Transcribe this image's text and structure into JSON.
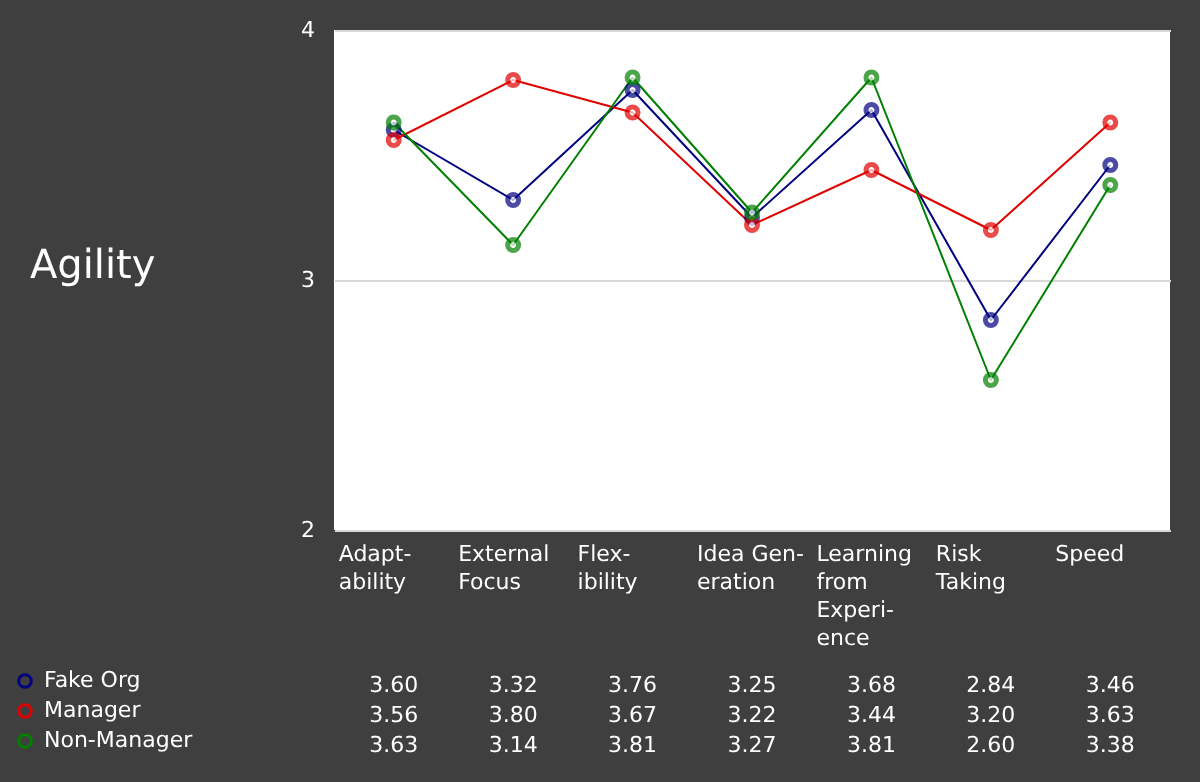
{
  "chart_data": {
    "type": "line",
    "title": "Agility",
    "categories": [
      "Adapt-\nability",
      "External\nFocus",
      "Flex-\nibility",
      "Idea Gen-\neration",
      "Learning\nfrom\nExperi-\nence",
      "Risk\nTaking",
      "Speed"
    ],
    "series": [
      {
        "name": "Fake Org",
        "color": "#000080",
        "values": [
          3.6,
          3.32,
          3.76,
          3.25,
          3.68,
          2.84,
          3.46
        ],
        "value_labels": [
          "3.60",
          "3.32",
          "3.76",
          "3.25",
          "3.68",
          "2.84",
          "3.46"
        ]
      },
      {
        "name": "Manager",
        "color": "#e00000",
        "values": [
          3.56,
          3.8,
          3.67,
          3.22,
          3.44,
          3.2,
          3.63
        ],
        "value_labels": [
          "3.56",
          "3.80",
          "3.67",
          "3.22",
          "3.44",
          "3.20",
          "3.63"
        ]
      },
      {
        "name": "Non-Manager",
        "color": "#008000",
        "values": [
          3.63,
          3.14,
          3.81,
          3.27,
          3.81,
          2.6,
          3.38
        ],
        "value_labels": [
          "3.63",
          "3.14",
          "3.81",
          "3.27",
          "3.81",
          "2.60",
          "3.38"
        ]
      }
    ],
    "ylim": [
      2,
      4
    ],
    "yticks": [
      2,
      3,
      4
    ],
    "grid": "y",
    "marker": "circle",
    "line_style": "solid",
    "legend": "bottom left"
  }
}
